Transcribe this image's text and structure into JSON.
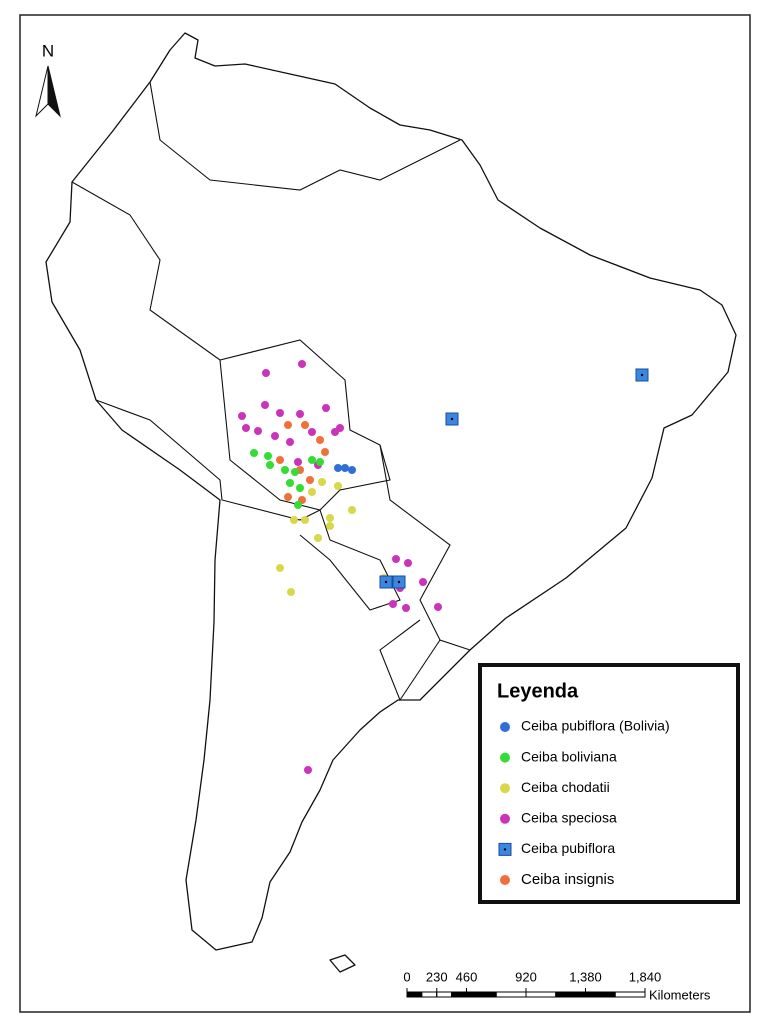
{
  "north_label": "N",
  "legend": {
    "title": "Leyenda",
    "items": [
      {
        "name": "Ceiba pubiflora (Bolivia)",
        "color": "#2f6fd8",
        "shape": "circle"
      },
      {
        "name": "Ceiba boliviana",
        "color": "#33dd33",
        "shape": "circle"
      },
      {
        "name": "Ceiba chodatii",
        "color": "#d8d84a",
        "shape": "circle"
      },
      {
        "name": "Ceiba speciosa",
        "color": "#cc33bb",
        "shape": "circle"
      },
      {
        "name": "Ceiba pubiflora",
        "color": "#3a86e0",
        "shape": "square"
      },
      {
        "name": "Ceiba insignis",
        "color": "#f0703a",
        "shape": "circle"
      }
    ]
  },
  "scale_bar": {
    "ticks": [
      0,
      230,
      460,
      920,
      {
        "value": 1380,
        "label": "1,380"
      },
      {
        "value": 1840,
        "label": "1,840"
      }
    ],
    "unit": "Kilometers"
  }
}
